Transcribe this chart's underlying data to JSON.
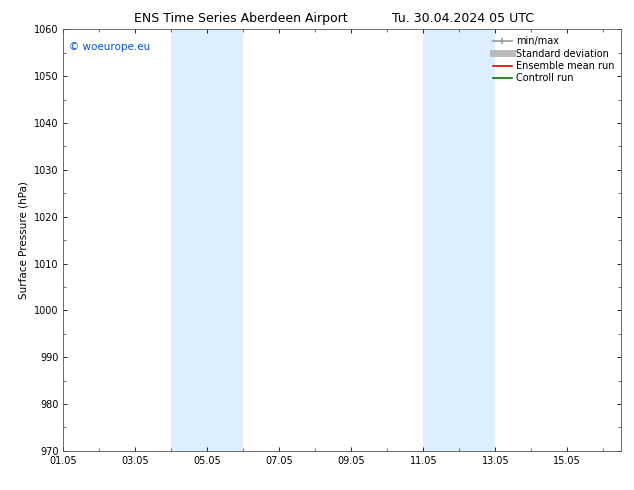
{
  "title": "ENS Time Series Aberdeen Airport",
  "title_right": "Tu. 30.04.2024 05 UTC",
  "ylabel": "Surface Pressure (hPa)",
  "ylim": [
    970,
    1060
  ],
  "yticks": [
    970,
    980,
    990,
    1000,
    1010,
    1020,
    1030,
    1040,
    1050,
    1060
  ],
  "xtick_labels": [
    "01.05",
    "03.05",
    "05.05",
    "07.05",
    "09.05",
    "11.05",
    "13.05",
    "15.05"
  ],
  "xtick_positions": [
    0,
    2,
    4,
    6,
    8,
    10,
    12,
    14
  ],
  "x_min": 0,
  "x_max": 15.5,
  "shaded_bands": [
    {
      "x_start": 3.0,
      "x_end": 4.0
    },
    {
      "x_start": 4.0,
      "x_end": 5.0
    },
    {
      "x_start": 10.0,
      "x_end": 11.0
    },
    {
      "x_start": 11.0,
      "x_end": 12.0
    }
  ],
  "shaded_color": "#ddeeff",
  "watermark_text": "© woeurope.eu",
  "watermark_color": "#0055cc",
  "legend_items": [
    {
      "label": "min/max",
      "color": "#999999",
      "lw": 1.2,
      "style": "solid"
    },
    {
      "label": "Standard deviation",
      "color": "#bbbbbb",
      "lw": 5,
      "style": "solid"
    },
    {
      "label": "Ensemble mean run",
      "color": "#dd0000",
      "lw": 1.2,
      "style": "solid"
    },
    {
      "label": "Controll run",
      "color": "#007700",
      "lw": 1.2,
      "style": "solid"
    }
  ],
  "bg_color": "#ffffff",
  "plot_bg_color": "#ffffff",
  "border_color": "#555555",
  "title_fontsize": 9,
  "axis_fontsize": 7.5,
  "tick_fontsize": 7,
  "legend_fontsize": 7
}
